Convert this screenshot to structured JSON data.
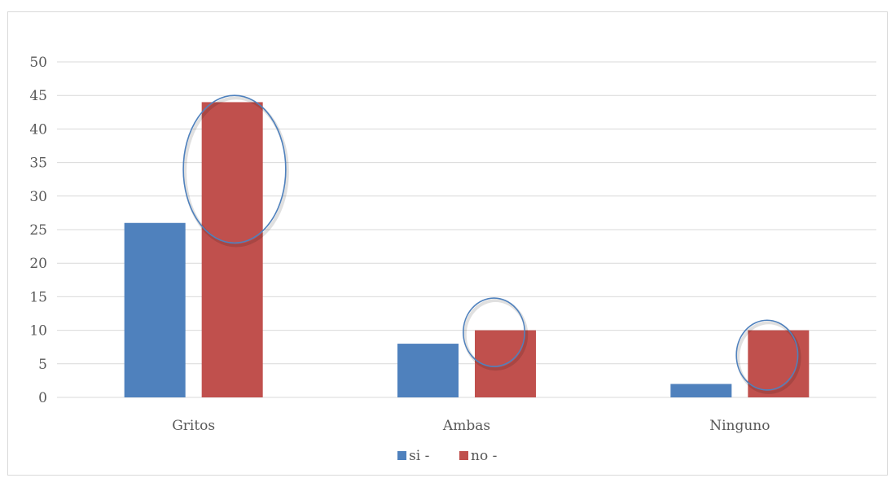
{
  "chart_data": {
    "type": "bar",
    "categories": [
      "Gritos",
      "Ambas",
      "Ninguno"
    ],
    "series": [
      {
        "name": "si -",
        "values": [
          26,
          8,
          2
        ],
        "color": "#4f81bd"
      },
      {
        "name": "no -",
        "values": [
          44,
          10,
          10
        ],
        "color": "#c0504d"
      }
    ],
    "ylim": [
      0,
      50
    ],
    "yticks": [
      0,
      5,
      10,
      15,
      20,
      25,
      30,
      35,
      40,
      45,
      50
    ],
    "grid": true,
    "legend_position": "bottom",
    "annotations": [
      {
        "type": "ellipse",
        "around": "Gritos",
        "center": [
          2.6,
          34
        ],
        "rx": 0.75,
        "ry": 11,
        "color": "#4f81bd"
      },
      {
        "type": "ellipse",
        "around": "Ambas",
        "center": [
          2.4,
          9.7
        ],
        "rx": 0.45,
        "ry": 5.1,
        "color": "#4f81bd"
      },
      {
        "type": "ellipse",
        "around": "Ninguno",
        "center": [
          2.4,
          6.3
        ],
        "rx": 0.45,
        "ry": 5.2,
        "color": "#4f81bd"
      }
    ]
  }
}
